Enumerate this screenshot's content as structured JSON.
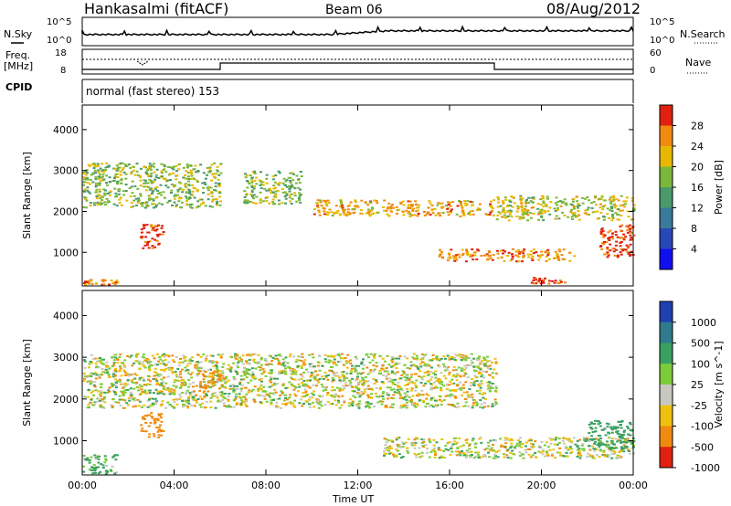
{
  "header": {
    "station": "Hankasalmi (fitACF)",
    "beam": "Beam 06",
    "date": "08/Aug/2012"
  },
  "labels": {
    "nsky": "N.Sky",
    "nsearch": "N.Search",
    "freq_line1": "Freq.",
    "freq_line2": "[MHz]",
    "nave": "Nave",
    "cpid": "CPID",
    "cpid_value": "normal (fast stereo) 153",
    "noise_tick_hi": "10^5",
    "noise_tick_lo": "10^0",
    "freq_tick_hi": "18",
    "freq_tick_lo": "8",
    "nave_tick_hi": "60",
    "nave_tick_lo": "0"
  },
  "chart_data": [
    {
      "type": "heatmap",
      "name": "power",
      "xlabel": "Time UT",
      "ylabel": "Slant Range [km]",
      "xlim": [
        0,
        24
      ],
      "ylim": [
        180,
        4600
      ],
      "xticks": [
        "00:00",
        "04:00",
        "08:00",
        "12:00",
        "16:00",
        "20:00",
        "00:00"
      ],
      "yticks": [
        1000,
        2000,
        3000,
        4000
      ],
      "colorbar": {
        "label": "Power [dB]",
        "ticks": [
          4,
          8,
          12,
          16,
          20,
          24,
          28
        ],
        "colors": [
          "#1010ee",
          "#2848b8",
          "#3a7a9a",
          "#4a9a6a",
          "#7ab83a",
          "#e8b800",
          "#f08a10",
          "#e02010"
        ]
      },
      "features": [
        {
          "x": [
            0,
            6
          ],
          "y": [
            2100,
            3200
          ],
          "value": 16
        },
        {
          "x": [
            2.5,
            3.5
          ],
          "y": [
            1100,
            1700
          ],
          "value": 28
        },
        {
          "x": [
            7,
            9.5
          ],
          "y": [
            2200,
            3000
          ],
          "value": 16
        },
        {
          "x": [
            10,
            18
          ],
          "y": [
            1900,
            2300
          ],
          "value": 22
        },
        {
          "x": [
            18,
            24
          ],
          "y": [
            1800,
            2400
          ],
          "value": 18
        },
        {
          "x": [
            15.5,
            21.5
          ],
          "y": [
            800,
            1100
          ],
          "value": 24
        },
        {
          "x": [
            19.5,
            21
          ],
          "y": [
            250,
            400
          ],
          "value": 28
        },
        {
          "x": [
            22.5,
            24
          ],
          "y": [
            900,
            1700
          ],
          "value": 28
        },
        {
          "x": [
            0,
            1.5
          ],
          "y": [
            230,
            350
          ],
          "value": 24
        }
      ]
    },
    {
      "type": "heatmap",
      "name": "velocity",
      "xlabel": "Time UT",
      "ylabel": "Slant Range [km]",
      "xlim": [
        0,
        24
      ],
      "ylim": [
        180,
        4600
      ],
      "xticks": [
        "00:00",
        "04:00",
        "08:00",
        "12:00",
        "16:00",
        "20:00",
        "00:00"
      ],
      "yticks": [
        1000,
        2000,
        3000,
        4000
      ],
      "colorbar": {
        "label": "Velocity [m s^-1]",
        "ticks": [
          1000,
          500,
          100,
          25,
          -25,
          -100,
          -500,
          -1000
        ],
        "colors": [
          "#2040b0",
          "#2f7a8c",
          "#3aa060",
          "#7ccc3a",
          "#c8c8c0",
          "#f0c010",
          "#f08a10",
          "#e02010"
        ]
      },
      "features": [
        {
          "x": [
            0,
            18
          ],
          "y": [
            1800,
            3100
          ],
          "value": 0
        },
        {
          "x": [
            2.5,
            3.5
          ],
          "y": [
            1100,
            1700
          ],
          "value": -300
        },
        {
          "x": [
            5,
            6
          ],
          "y": [
            2200,
            2700
          ],
          "value": -300
        },
        {
          "x": [
            13,
            24
          ],
          "y": [
            600,
            1100
          ],
          "value": 0
        },
        {
          "x": [
            22,
            24
          ],
          "y": [
            800,
            1500
          ],
          "value": 300
        },
        {
          "x": [
            0,
            1.5
          ],
          "y": [
            230,
            700
          ],
          "value": 150
        }
      ]
    }
  ]
}
